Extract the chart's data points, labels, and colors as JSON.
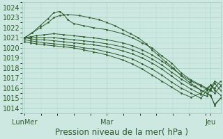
{
  "title": "Pression niveau de la mer( hPa )",
  "ylabel_ticks": [
    1014,
    1015,
    1016,
    1017,
    1018,
    1019,
    1020,
    1021,
    1022,
    1023,
    1024
  ],
  "xtick_labels": [
    "LunMer",
    "Mar",
    "Jeu"
  ],
  "xtick_positions": [
    0.0,
    0.42,
    0.95
  ],
  "ylim": [
    1013.5,
    1024.5
  ],
  "xlim": [
    -0.01,
    1.0
  ],
  "bg_color": "#cce8e0",
  "grid_color": "#9ecfbf",
  "line_color": "#2d5a2d",
  "lines": [
    [
      0.0,
      1021.0,
      0.04,
      1021.5,
      0.08,
      1022.2,
      0.12,
      1022.9,
      0.15,
      1023.5,
      0.18,
      1023.6,
      0.2,
      1023.3,
      0.22,
      1022.8,
      0.25,
      1022.4,
      0.3,
      1022.2,
      0.35,
      1022.0,
      0.42,
      1021.8,
      0.5,
      1021.4,
      0.55,
      1021.0,
      0.6,
      1020.5,
      0.65,
      1020.0,
      0.7,
      1019.2,
      0.75,
      1018.5,
      0.8,
      1017.5,
      0.85,
      1016.8,
      0.9,
      1016.3,
      0.93,
      1016.0,
      0.95,
      1015.8,
      0.97,
      1015.5,
      1.0,
      1016.2
    ],
    [
      0.0,
      1021.0,
      0.04,
      1021.5,
      0.08,
      1022.0,
      0.12,
      1022.5,
      0.15,
      1023.0,
      0.18,
      1023.2,
      0.22,
      1023.3,
      0.28,
      1023.2,
      0.33,
      1023.0,
      0.38,
      1022.8,
      0.42,
      1022.5,
      0.46,
      1022.2,
      0.5,
      1021.8,
      0.54,
      1021.4,
      0.58,
      1021.0,
      0.62,
      1020.4,
      0.65,
      1019.8,
      0.68,
      1019.3,
      0.72,
      1018.6,
      0.76,
      1018.0,
      0.8,
      1017.2,
      0.84,
      1016.6,
      0.87,
      1016.2,
      0.9,
      1015.8,
      0.93,
      1015.5,
      0.95,
      1015.2,
      0.97,
      1014.4,
      1.0,
      1015.0
    ],
    [
      0.0,
      1021.0,
      0.03,
      1021.1,
      0.06,
      1021.2,
      0.1,
      1021.3,
      0.15,
      1021.4,
      0.2,
      1021.3,
      0.25,
      1021.2,
      0.3,
      1021.1,
      0.35,
      1021.0,
      0.42,
      1020.8,
      0.5,
      1020.5,
      0.55,
      1020.2,
      0.6,
      1019.8,
      0.65,
      1019.3,
      0.7,
      1018.7,
      0.75,
      1018.0,
      0.8,
      1017.3,
      0.85,
      1016.7,
      0.9,
      1016.2,
      0.93,
      1015.9,
      0.95,
      1015.8,
      0.97,
      1016.5,
      1.0,
      1015.8
    ],
    [
      0.0,
      1021.0,
      0.03,
      1021.0,
      0.06,
      1021.0,
      0.1,
      1021.0,
      0.15,
      1021.0,
      0.2,
      1020.9,
      0.25,
      1020.8,
      0.3,
      1020.7,
      0.35,
      1020.6,
      0.42,
      1020.4,
      0.5,
      1020.1,
      0.55,
      1019.8,
      0.6,
      1019.4,
      0.65,
      1018.9,
      0.7,
      1018.3,
      0.75,
      1017.6,
      0.8,
      1016.9,
      0.85,
      1016.3,
      0.9,
      1015.8,
      0.93,
      1015.5,
      0.95,
      1015.3,
      0.97,
      1014.3,
      1.0,
      1015.0
    ],
    [
      0.0,
      1021.0,
      0.03,
      1020.9,
      0.06,
      1020.8,
      0.1,
      1020.8,
      0.15,
      1020.7,
      0.2,
      1020.6,
      0.25,
      1020.5,
      0.3,
      1020.4,
      0.35,
      1020.3,
      0.42,
      1020.1,
      0.5,
      1019.7,
      0.55,
      1019.4,
      0.6,
      1019.0,
      0.65,
      1018.5,
      0.7,
      1017.9,
      0.75,
      1017.2,
      0.8,
      1016.5,
      0.85,
      1015.9,
      0.9,
      1015.4,
      0.93,
      1015.2,
      0.95,
      1016.0,
      0.97,
      1016.7,
      1.0,
      1016.3
    ],
    [
      0.0,
      1020.8,
      0.03,
      1020.7,
      0.06,
      1020.6,
      0.1,
      1020.5,
      0.15,
      1020.4,
      0.2,
      1020.3,
      0.25,
      1020.2,
      0.3,
      1020.0,
      0.35,
      1019.9,
      0.42,
      1019.6,
      0.5,
      1019.2,
      0.55,
      1018.9,
      0.6,
      1018.4,
      0.65,
      1017.9,
      0.7,
      1017.3,
      0.75,
      1016.6,
      0.8,
      1016.0,
      0.85,
      1015.5,
      0.9,
      1015.0,
      0.93,
      1015.8,
      0.95,
      1016.3,
      0.97,
      1016.0,
      1.0,
      1016.7
    ],
    [
      0.0,
      1020.6,
      0.03,
      1020.5,
      0.06,
      1020.4,
      0.1,
      1020.3,
      0.15,
      1020.2,
      0.2,
      1020.1,
      0.25,
      1020.0,
      0.3,
      1019.8,
      0.35,
      1019.6,
      0.42,
      1019.3,
      0.5,
      1018.8,
      0.55,
      1018.4,
      0.6,
      1017.9,
      0.65,
      1017.3,
      0.7,
      1016.7,
      0.75,
      1016.1,
      0.8,
      1015.5,
      0.85,
      1015.1,
      0.9,
      1015.5,
      0.93,
      1016.0,
      0.95,
      1016.3,
      0.97,
      1015.8,
      1.0,
      1015.3
    ]
  ],
  "title_fontsize": 8.5,
  "tick_fontsize": 7,
  "lw": 0.7
}
